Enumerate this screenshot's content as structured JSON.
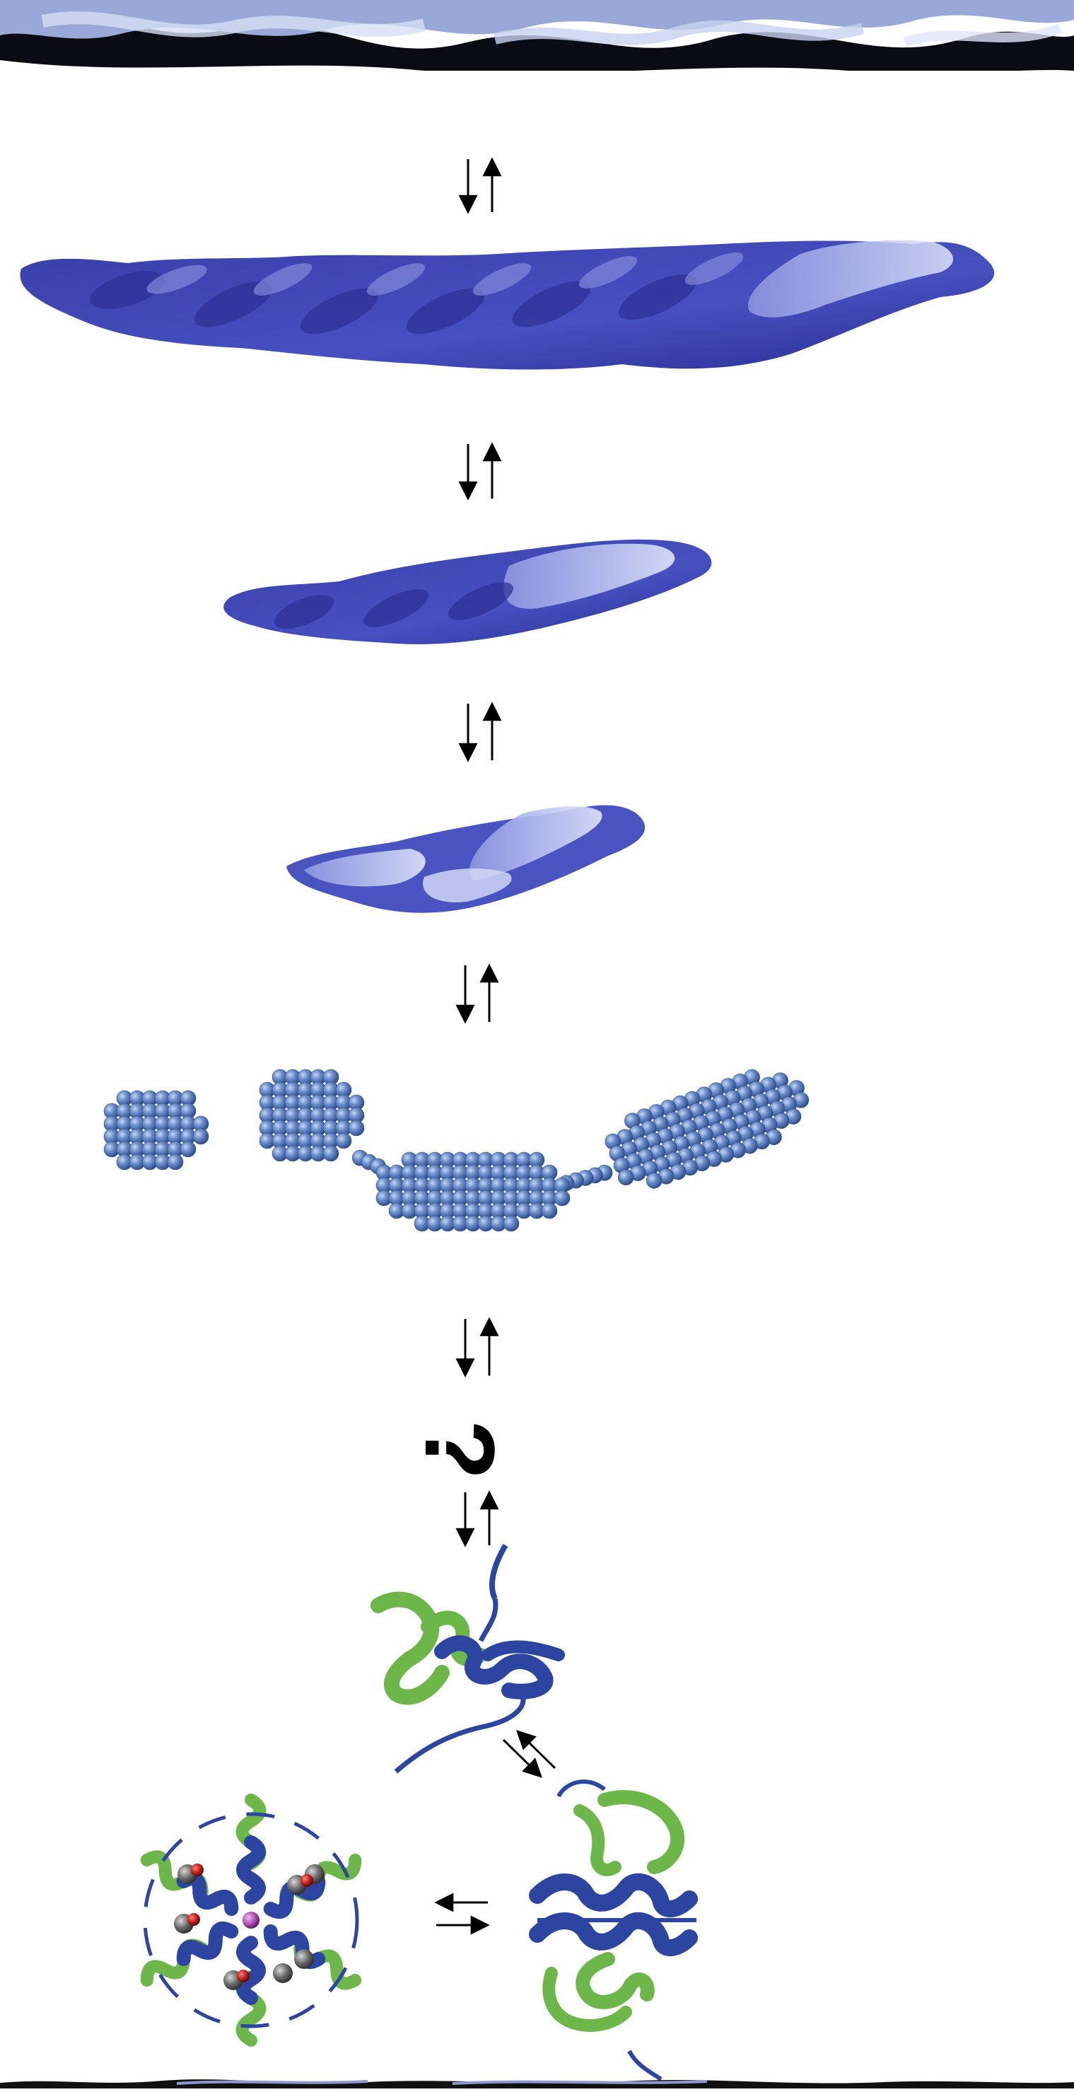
{
  "figure": {
    "question_mark": "?",
    "colors": {
      "fibril_dark": "#000000",
      "fibril_light": "#b8c4e8",
      "aggregate_dark": "#2a2e92",
      "aggregate_mid": "#4650c0",
      "aggregate_light": "#c9d2f4",
      "sphere_blue": "#6b8fcb",
      "helix_green": "#6db74a",
      "coil_blue": "#2c45a0",
      "atom_grey": "#6e6e6e",
      "atom_red": "#c0201c",
      "ion_magenta": "#b04bb4"
    },
    "icons": [
      "fibril-strand-top",
      "equilibrium-arrows-vertical",
      "protofilament-aggregate-large",
      "protofilament-aggregate-medium",
      "protofilament-aggregate-small",
      "sphere-cluster-oligomer",
      "monomer-ribbon",
      "dimer-ribbon",
      "hexamer-ribbon",
      "equilibrium-arrows-diagonal",
      "equilibrium-arrows-horizontal",
      "fibril-strand-bottom"
    ]
  }
}
